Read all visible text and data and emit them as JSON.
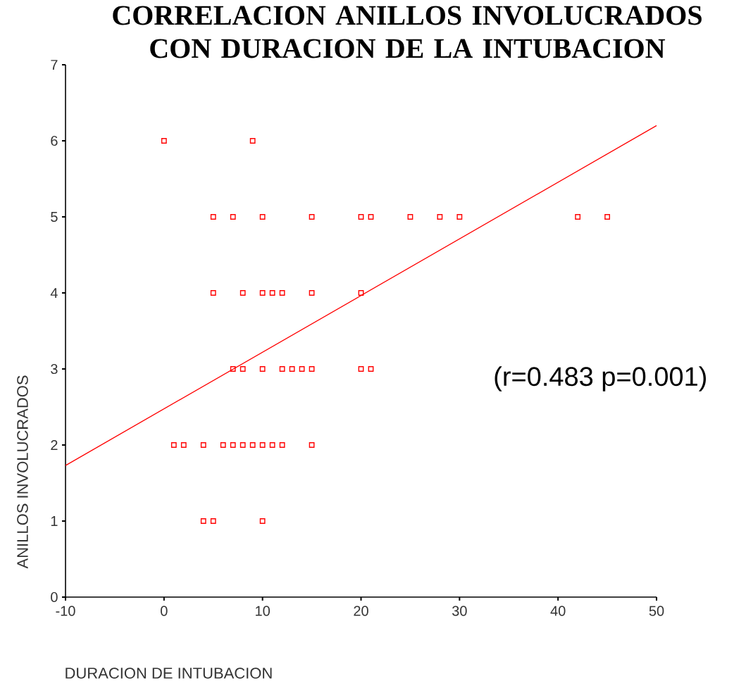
{
  "chart_data": {
    "type": "scatter",
    "title": "CORRELACION ANILLOS INVOLUCRADOS CON DURACION DE LA INTUBACION",
    "xlabel": "DURACION DE INTUBACION",
    "ylabel": "ANILLOS INVOLUCRADOS",
    "xlim": [
      -10,
      50
    ],
    "ylim": [
      0,
      7
    ],
    "xticks": [
      -10,
      0,
      10,
      20,
      30,
      40,
      50
    ],
    "yticks": [
      0,
      1,
      2,
      3,
      4,
      5,
      6,
      7
    ],
    "annotations": [
      "(r=0.483 p=0.001)"
    ],
    "series": [
      {
        "marker": "square",
        "color": "#ff0000",
        "x": [
          0,
          9,
          5,
          7,
          10,
          15,
          20,
          21,
          25,
          28,
          30,
          42,
          45,
          5,
          8,
          10,
          11,
          12,
          15,
          20,
          7,
          8,
          10,
          12,
          13,
          14,
          15,
          20,
          21,
          1,
          2,
          4,
          6,
          7,
          8,
          9,
          10,
          11,
          12,
          15,
          4,
          5,
          10
        ],
        "values": [
          6,
          6,
          5,
          5,
          5,
          5,
          5,
          5,
          5,
          5,
          5,
          5,
          5,
          4,
          4,
          4,
          4,
          4,
          4,
          4,
          3,
          3,
          3,
          3,
          3,
          3,
          3,
          3,
          3,
          2,
          2,
          2,
          2,
          2,
          2,
          2,
          2,
          2,
          2,
          2,
          1,
          1,
          1
        ]
      },
      {
        "type": "line",
        "marker": "none",
        "color": "#ff0000",
        "x": [
          -10,
          50
        ],
        "values": [
          1.73,
          6.2
        ]
      }
    ]
  }
}
